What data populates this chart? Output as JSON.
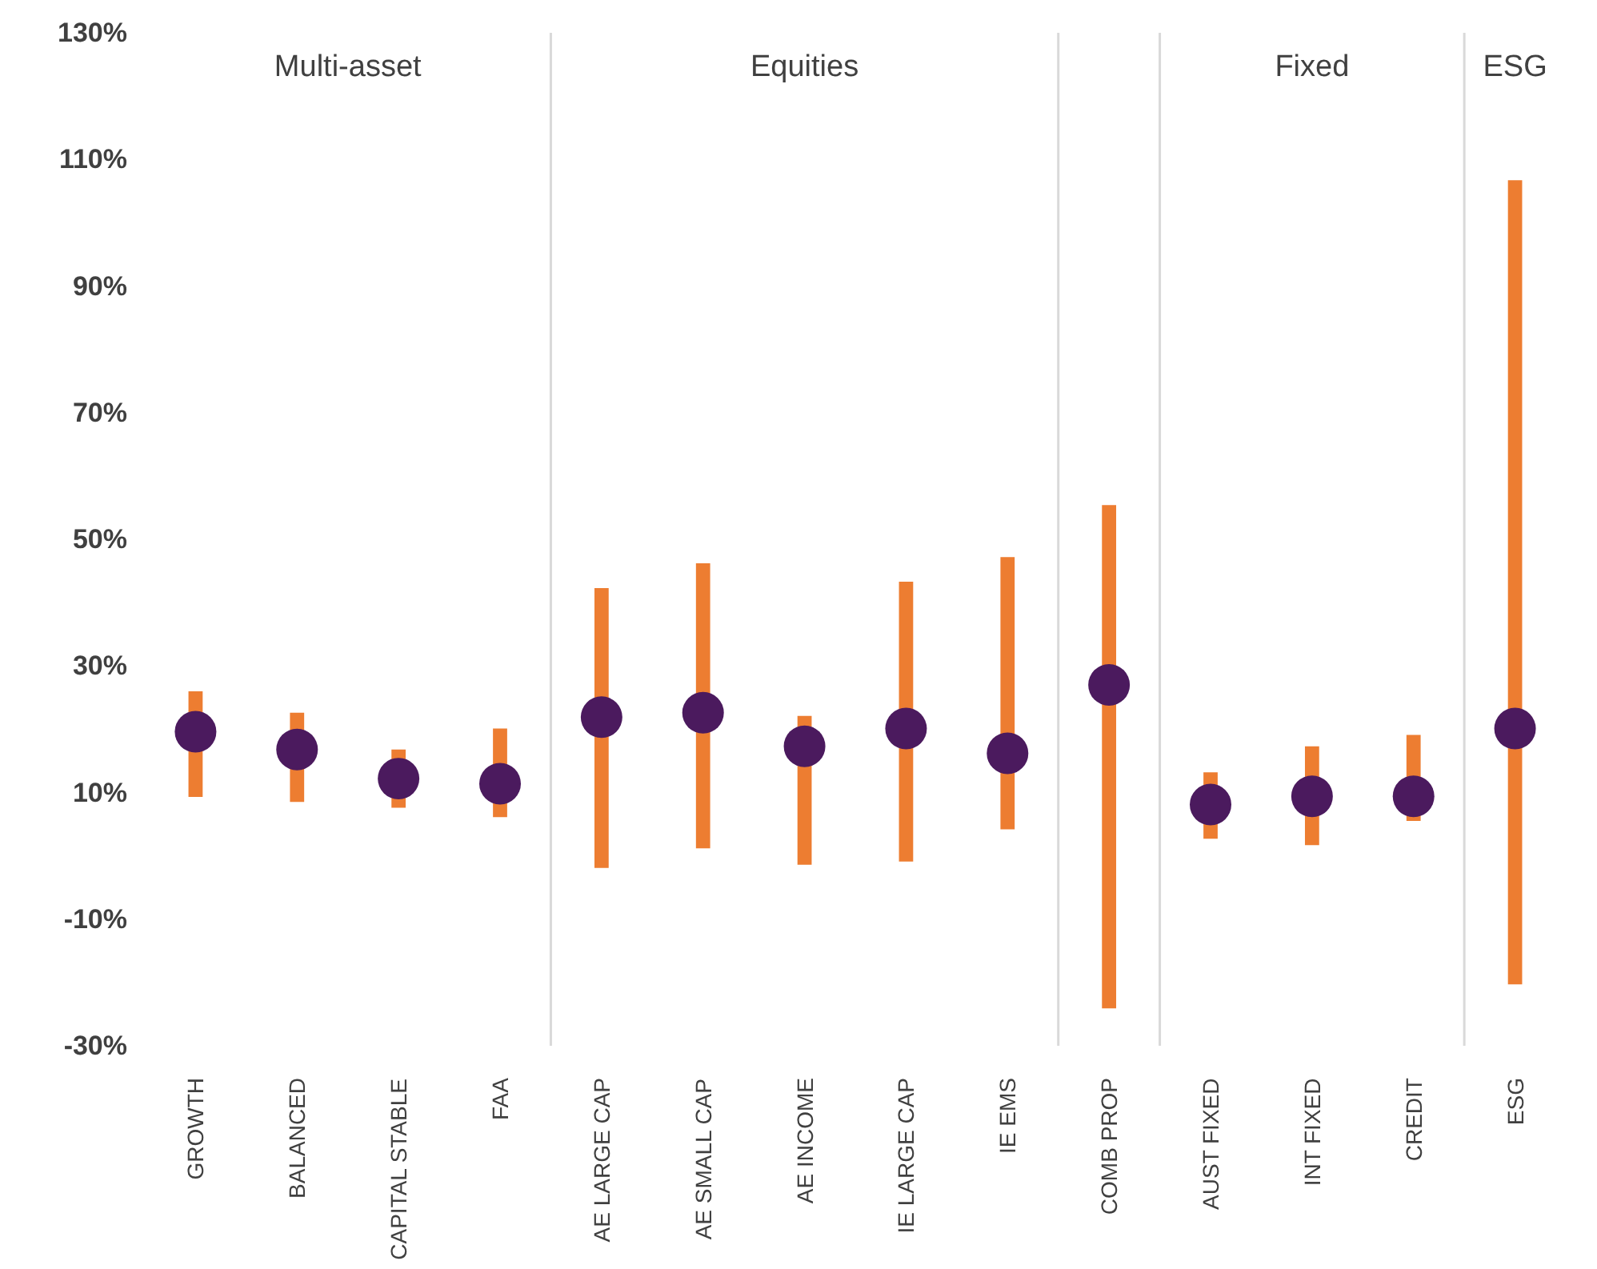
{
  "chart_data": {
    "type": "bar",
    "categories": [
      "GROWTH",
      "BALANCED",
      "CAPITAL STABLE",
      "FAA",
      "AE LARGE CAP",
      "AE SMALL CAP",
      "AE INCOME",
      "IE LARGE CAP",
      "IE EMS",
      "COMB PROP",
      "AUST FIXED",
      "INT FIXED",
      "CREDIT",
      "ESG"
    ],
    "series": [
      {
        "color": "#ed7d31",
        "base": [
          9.3,
          8.5,
          7.6,
          6.1,
          -1.9,
          1.2,
          -1.4,
          -0.9,
          4.2,
          -24.1,
          2.7,
          1.7,
          5.5,
          -20.3
        ],
        "values": [
          16.7,
          14.1,
          9.2,
          14.0,
          44.2,
          45.0,
          23.5,
          44.2,
          43.0,
          79.5,
          10.5,
          15.6,
          13.6,
          127.0
        ]
      },
      {
        "type": "scatter",
        "color": "#4b1a5e",
        "x": [
          "GROWTH",
          "BALANCED",
          "CAPITAL STABLE",
          "FAA",
          "AE LARGE CAP",
          "AE SMALL CAP",
          "AE INCOME",
          "IE LARGE CAP",
          "IE EMS",
          "COMB PROP",
          "AUST FIXED",
          "INT FIXED",
          "CREDIT",
          "ESG"
        ],
        "values": [
          19.6,
          16.8,
          12.2,
          11.4,
          21.9,
          22.6,
          17.3,
          20.1,
          16.2,
          27.0,
          8.1,
          9.4,
          9.4,
          20.1
        ]
      }
    ],
    "marker": "circle",
    "ylim": [
      -30,
      130
    ],
    "yticks": [
      {
        "value": -30,
        "label": "-30%"
      },
      {
        "value": -10,
        "label": "-10%"
      },
      {
        "value": 10,
        "label": "10%"
      },
      {
        "value": 30,
        "label": "30%"
      },
      {
        "value": 50,
        "label": "50%"
      },
      {
        "value": 70,
        "label": "70%"
      },
      {
        "value": 90,
        "label": "90%"
      },
      {
        "value": 110,
        "label": "110%"
      },
      {
        "value": 130,
        "label": "130%"
      }
    ],
    "annotations": [
      "Multi-asset",
      "Equities",
      "Fixed",
      "ESG"
    ]
  }
}
